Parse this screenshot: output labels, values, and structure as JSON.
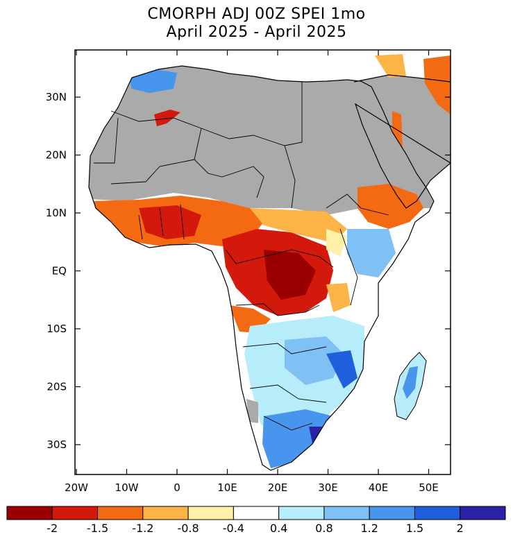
{
  "title_line1": "CMORPH ADJ 00Z SPEI 1mo",
  "title_line2": "April 2025 - April 2025",
  "y_ticks": [
    "30N",
    "20N",
    "10N",
    "EQ",
    "10S",
    "20S",
    "30S"
  ],
  "x_ticks": [
    "20W",
    "10W",
    "0",
    "10E",
    "20E",
    "30E",
    "40E",
    "50E"
  ],
  "colorbar": {
    "colors": [
      "#9a0000",
      "#d2190b",
      "#f36a12",
      "#fcb447",
      "#fff2a8",
      "#ffffff",
      "#b7ecfb",
      "#7fc1f5",
      "#4895ee",
      "#1f5fdc",
      "#2a22a6"
    ],
    "labels": [
      "-2",
      "-1.5",
      "-1.2",
      "-0.8",
      "-0.4",
      "0.4",
      "0.8",
      "1.2",
      "1.5",
      "2"
    ]
  },
  "colors": {
    "no_data": "#aaaaaa",
    "ocean": "#ffffff"
  }
}
